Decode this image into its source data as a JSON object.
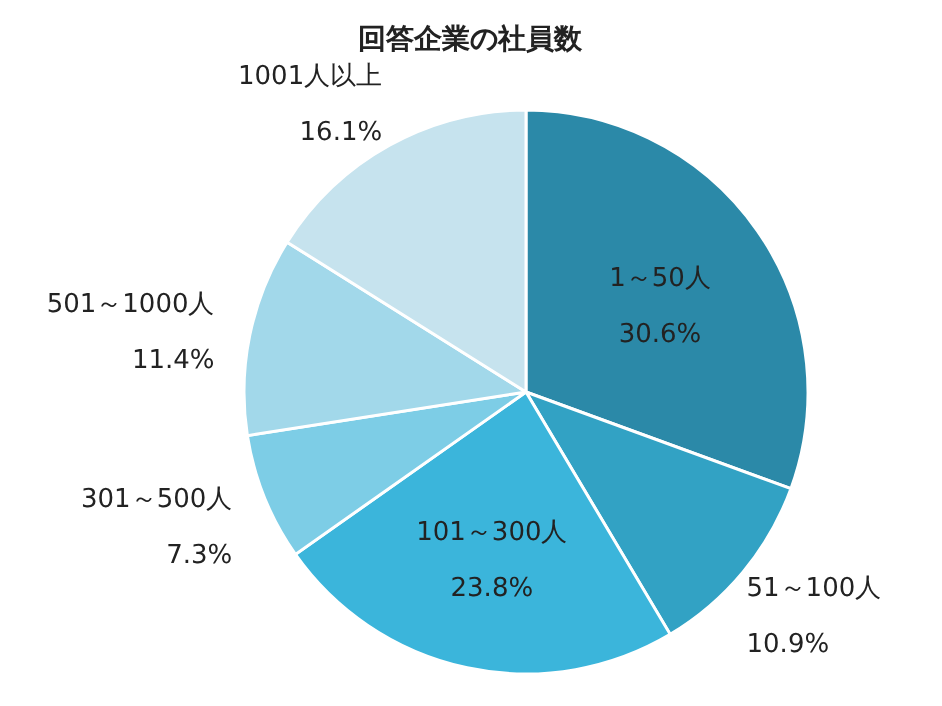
{
  "chart_data": {
    "type": "pie",
    "title": "回答企業の社員数",
    "categories": [
      "1～50人",
      "51～100人",
      "101～300人",
      "301～500人",
      "501～1000人",
      "1001人以上"
    ],
    "values": [
      30.6,
      10.9,
      23.8,
      7.3,
      11.4,
      16.1
    ],
    "value_labels": [
      "30.6%",
      "10.9%",
      "23.8%",
      "7.3%",
      "11.4%",
      "16.1%"
    ],
    "colors": [
      "#2b89a8",
      "#32a2c4",
      "#3bb5db",
      "#7dcde6",
      "#a2d8ea",
      "#c6e3ee"
    ]
  }
}
